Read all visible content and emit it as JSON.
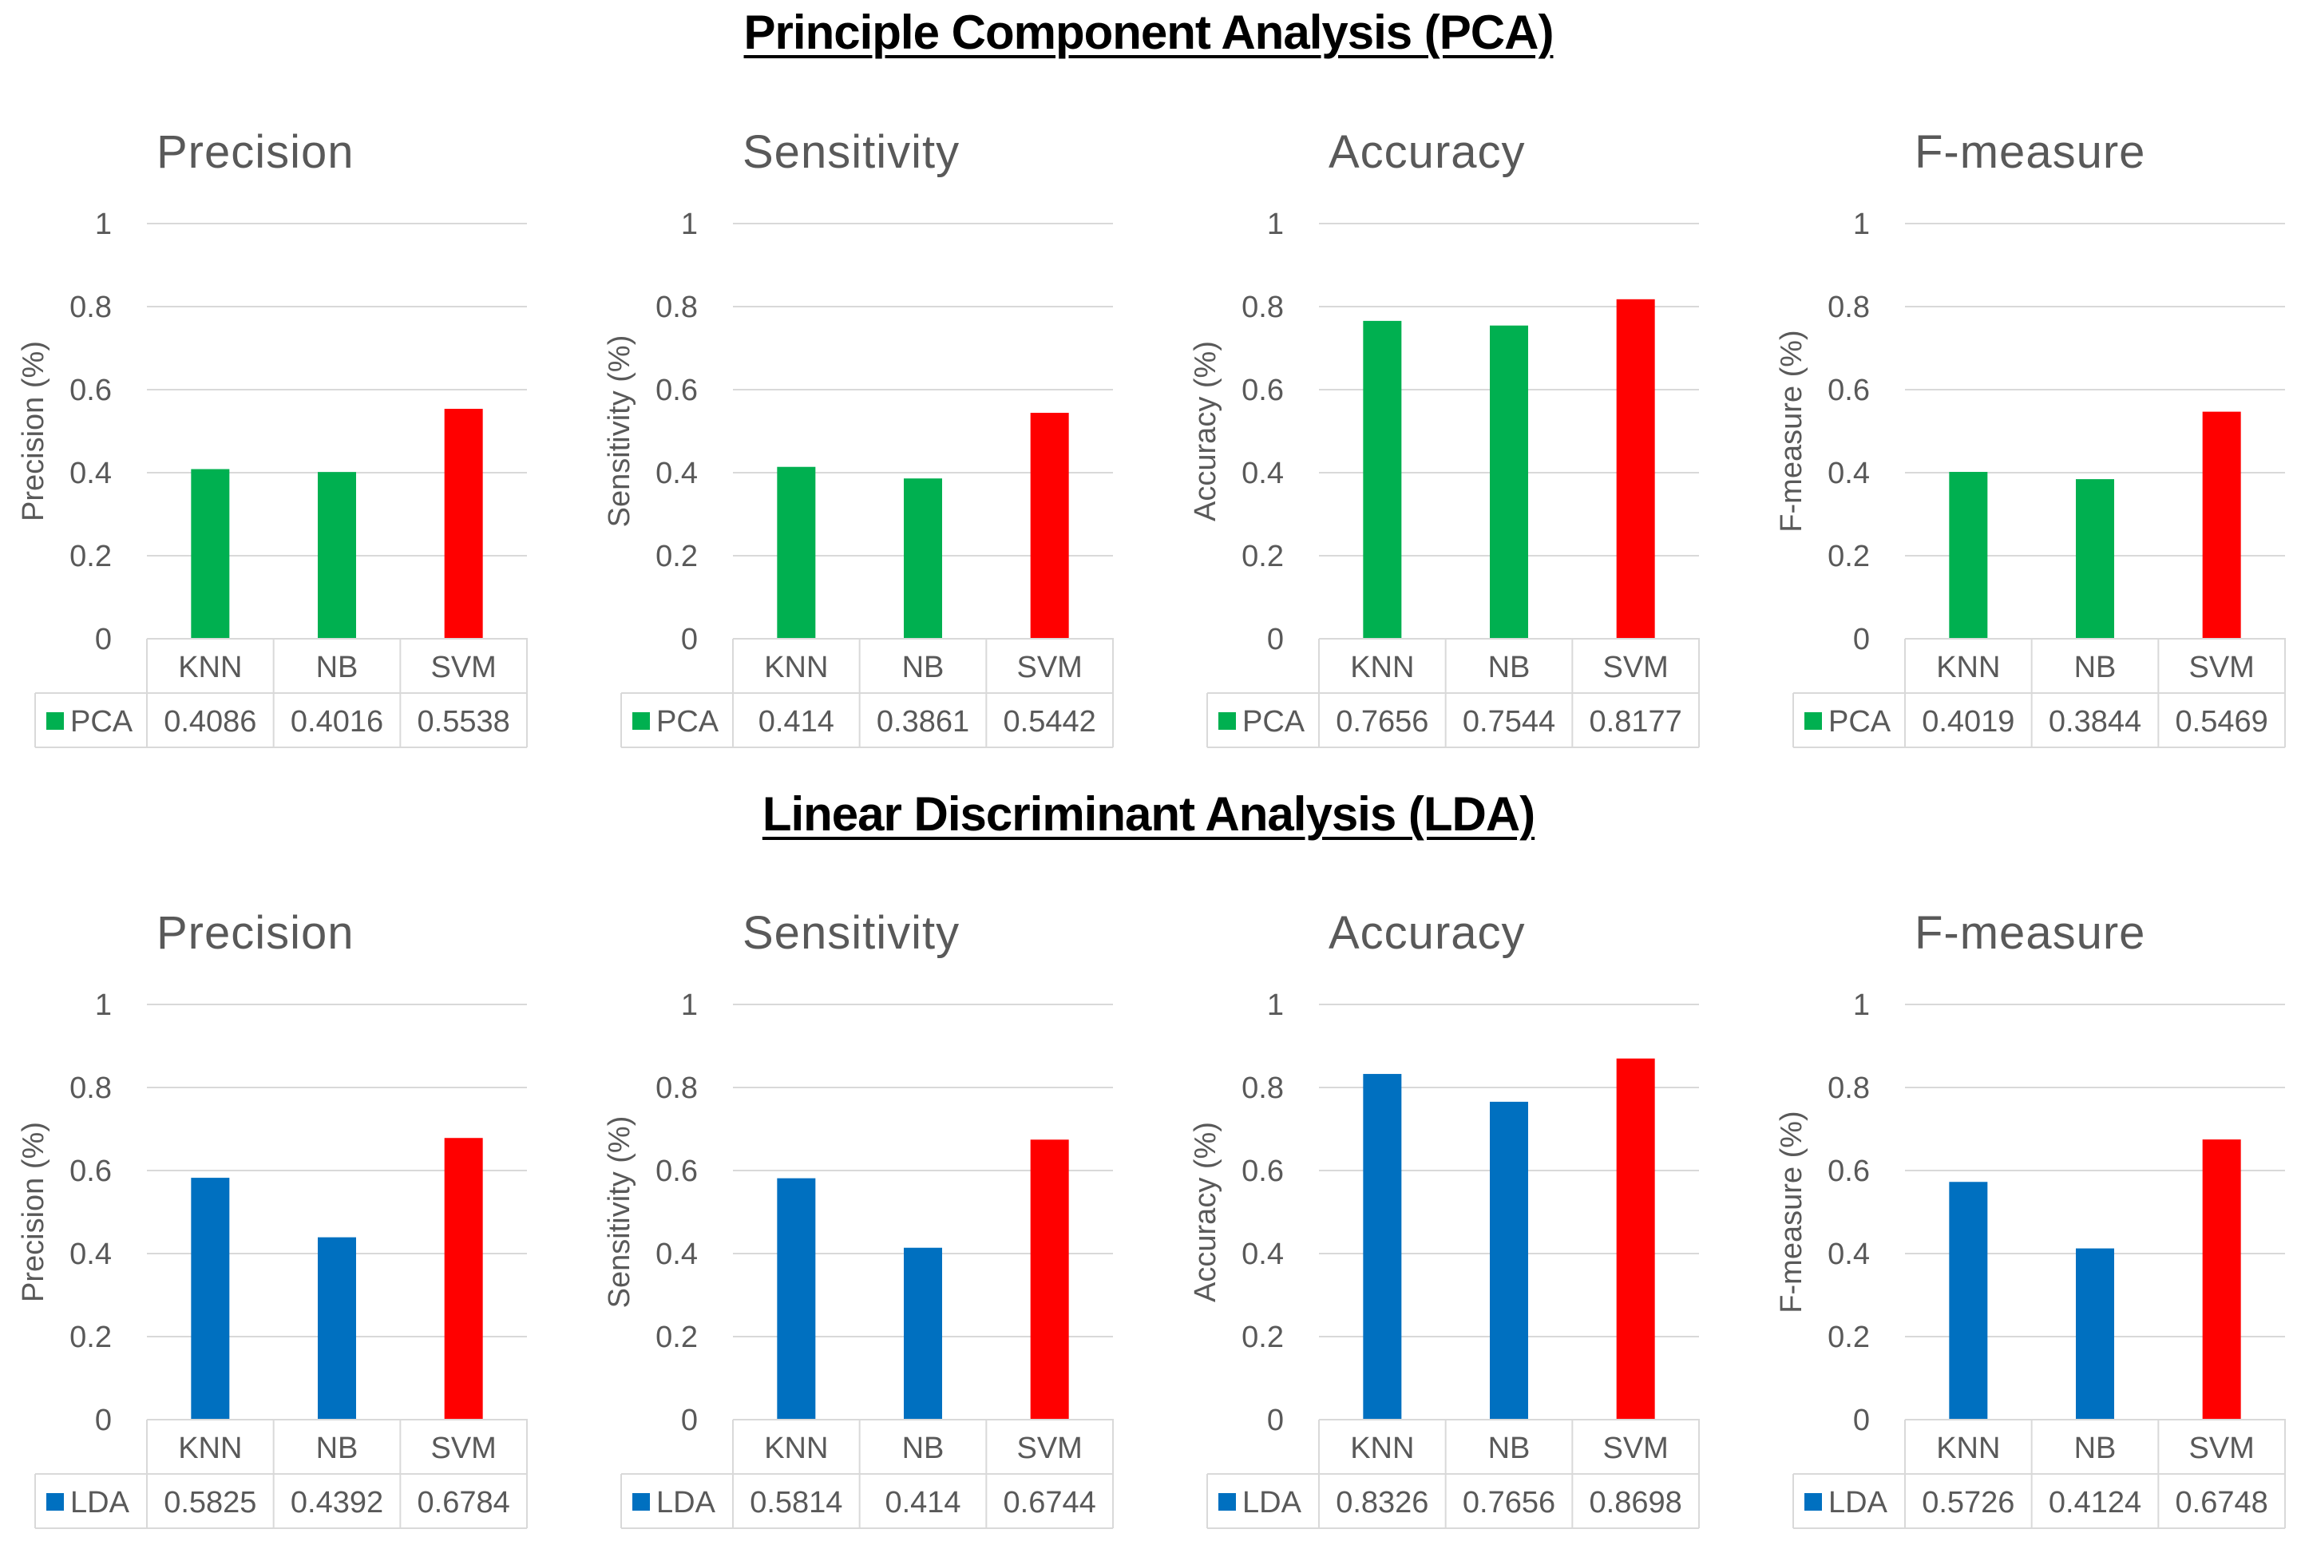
{
  "sections": [
    {
      "title": "Principle Component Analysis (PCA)"
    },
    {
      "title": "Linear Discriminant Analysis (LDA)"
    }
  ],
  "colors": {
    "pca": "#00b050",
    "lda": "#0070c0",
    "highlight": "#ff0000"
  },
  "chart_data": [
    {
      "type": "bar",
      "group": "PCA",
      "title": "Precision",
      "ylabel": "Precision (%)",
      "categories": [
        "KNN",
        "NB",
        "SVM"
      ],
      "series": [
        {
          "name": "PCA",
          "values": [
            0.4086,
            0.4016,
            0.5538
          ]
        }
      ],
      "value_labels": [
        "0.4086",
        "0.4016",
        "0.5538"
      ],
      "ylim": [
        0,
        1
      ],
      "yticks": [
        "0",
        "0.2",
        "0.4",
        "0.6",
        "0.8",
        "1"
      ],
      "grid": true,
      "legend": "data-table"
    },
    {
      "type": "bar",
      "group": "PCA",
      "title": "Sensitivity",
      "ylabel": "Sensitivity (%)",
      "categories": [
        "KNN",
        "NB",
        "SVM"
      ],
      "series": [
        {
          "name": "PCA",
          "values": [
            0.414,
            0.3861,
            0.5442
          ]
        }
      ],
      "value_labels": [
        "0.414",
        "0.3861",
        "0.5442"
      ],
      "ylim": [
        0,
        1
      ],
      "yticks": [
        "0",
        "0.2",
        "0.4",
        "0.6",
        "0.8",
        "1"
      ],
      "grid": true,
      "legend": "data-table"
    },
    {
      "type": "bar",
      "group": "PCA",
      "title": "Accuracy",
      "ylabel": "Accuracy (%)",
      "categories": [
        "KNN",
        "NB",
        "SVM"
      ],
      "series": [
        {
          "name": "PCA",
          "values": [
            0.7656,
            0.7544,
            0.8177
          ]
        }
      ],
      "value_labels": [
        "0.7656",
        "0.7544",
        "0.8177"
      ],
      "ylim": [
        0,
        1
      ],
      "yticks": [
        "0",
        "0.2",
        "0.4",
        "0.6",
        "0.8",
        "1"
      ],
      "grid": true,
      "legend": "data-table"
    },
    {
      "type": "bar",
      "group": "PCA",
      "title": "F-measure",
      "ylabel": "F-measure (%)",
      "categories": [
        "KNN",
        "NB",
        "SVM"
      ],
      "series": [
        {
          "name": "PCA",
          "values": [
            0.4019,
            0.3844,
            0.5469
          ]
        }
      ],
      "value_labels": [
        "0.4019",
        "0.3844",
        "0.5469"
      ],
      "ylim": [
        0,
        1
      ],
      "yticks": [
        "0",
        "0.2",
        "0.4",
        "0.6",
        "0.8",
        "1"
      ],
      "grid": true,
      "legend": "data-table"
    },
    {
      "type": "bar",
      "group": "LDA",
      "title": "Precision",
      "ylabel": "Precision (%)",
      "categories": [
        "KNN",
        "NB",
        "SVM"
      ],
      "series": [
        {
          "name": "LDA",
          "values": [
            0.5825,
            0.4392,
            0.6784
          ]
        }
      ],
      "value_labels": [
        "0.5825",
        "0.4392",
        "0.6784"
      ],
      "ylim": [
        0,
        1
      ],
      "yticks": [
        "0",
        "0.2",
        "0.4",
        "0.6",
        "0.8",
        "1"
      ],
      "grid": true,
      "legend": "data-table"
    },
    {
      "type": "bar",
      "group": "LDA",
      "title": "Sensitivity",
      "ylabel": "Sensitivity (%)",
      "categories": [
        "KNN",
        "NB",
        "SVM"
      ],
      "series": [
        {
          "name": "LDA",
          "values": [
            0.5814,
            0.414,
            0.6744
          ]
        }
      ],
      "value_labels": [
        "0.5814",
        "0.414",
        "0.6744"
      ],
      "ylim": [
        0,
        1
      ],
      "yticks": [
        "0",
        "0.2",
        "0.4",
        "0.6",
        "0.8",
        "1"
      ],
      "grid": true,
      "legend": "data-table"
    },
    {
      "type": "bar",
      "group": "LDA",
      "title": "Accuracy",
      "ylabel": "Accuracy (%)",
      "categories": [
        "KNN",
        "NB",
        "SVM"
      ],
      "series": [
        {
          "name": "LDA",
          "values": [
            0.8326,
            0.7656,
            0.8698
          ]
        }
      ],
      "value_labels": [
        "0.8326",
        "0.7656",
        "0.8698"
      ],
      "ylim": [
        0,
        1
      ],
      "yticks": [
        "0",
        "0.2",
        "0.4",
        "0.6",
        "0.8",
        "1"
      ],
      "grid": true,
      "legend": "data-table"
    },
    {
      "type": "bar",
      "group": "LDA",
      "title": "F-measure",
      "ylabel": "F-measure (%)",
      "categories": [
        "KNN",
        "NB",
        "SVM"
      ],
      "series": [
        {
          "name": "LDA",
          "values": [
            0.5726,
            0.4124,
            0.6748
          ]
        }
      ],
      "value_labels": [
        "0.5726",
        "0.4124",
        "0.6748"
      ],
      "ylim": [
        0,
        1
      ],
      "yticks": [
        "0",
        "0.2",
        "0.4",
        "0.6",
        "0.8",
        "1"
      ],
      "grid": true,
      "legend": "data-table"
    }
  ]
}
